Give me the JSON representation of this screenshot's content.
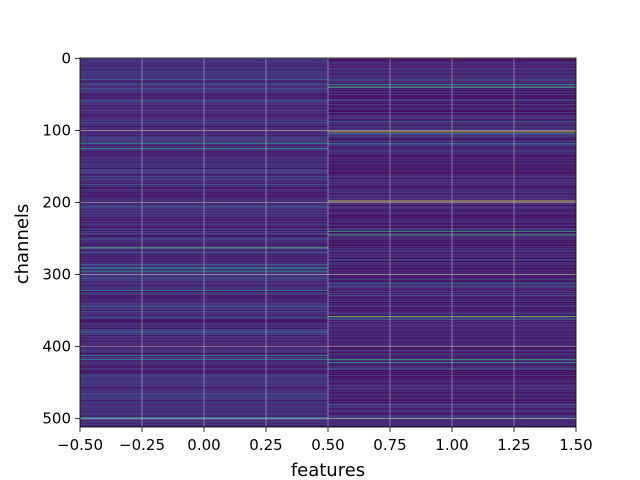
{
  "chart_data": {
    "type": "heatmap",
    "xlabel": "features",
    "ylabel": "channels",
    "x_columns": [
      0,
      1
    ],
    "xlim": [
      -0.5,
      1.5
    ],
    "ylim": [
      511.5,
      -0.5
    ],
    "x_ticks": [
      -0.5,
      -0.25,
      0.0,
      0.25,
      0.5,
      0.75,
      1.0,
      1.25,
      1.5
    ],
    "x_tick_labels": [
      "−0.50",
      "−0.25",
      "0.00",
      "0.25",
      "0.50",
      "0.75",
      "1.00",
      "1.25",
      "1.50"
    ],
    "y_ticks": [
      0,
      100,
      200,
      300,
      400,
      500
    ],
    "y_tick_labels": [
      "0",
      "100",
      "200",
      "300",
      "400",
      "500"
    ],
    "grid": true,
    "colormap": "viridis",
    "colormap_stops": [
      "#440154",
      "#482878",
      "#3e4a89",
      "#31688e",
      "#26828e",
      "#1f9e89",
      "#35b779",
      "#6ece58",
      "#b5de2b",
      "#fde725"
    ],
    "channels": 512,
    "base_level_column_0": 0.12,
    "base_level_column_1": 0.1,
    "highlights_column_0": [
      [
        30,
        0.35
      ],
      [
        42,
        0.28
      ],
      [
        58,
        0.3
      ],
      [
        118,
        0.42
      ],
      [
        125,
        0.48
      ],
      [
        175,
        0.3
      ],
      [
        263,
        0.72
      ],
      [
        290,
        0.45
      ],
      [
        296,
        0.5
      ],
      [
        305,
        0.38
      ],
      [
        322,
        0.48
      ],
      [
        360,
        0.3
      ],
      [
        378,
        0.35
      ],
      [
        412,
        0.55
      ],
      [
        418,
        0.5
      ],
      [
        470,
        0.32
      ],
      [
        498,
        0.45
      ]
    ],
    "highlights_column_1": [
      [
        30,
        0.45
      ],
      [
        36,
        0.55
      ],
      [
        40,
        0.72
      ],
      [
        88,
        0.4
      ],
      [
        102,
        0.92
      ],
      [
        118,
        0.35
      ],
      [
        198,
        0.97
      ],
      [
        240,
        0.65
      ],
      [
        245,
        0.7
      ],
      [
        280,
        0.32
      ],
      [
        312,
        0.42
      ],
      [
        358,
        0.8
      ],
      [
        362,
        0.35
      ],
      [
        418,
        0.62
      ],
      [
        422,
        0.55
      ],
      [
        500,
        0.5
      ]
    ]
  }
}
